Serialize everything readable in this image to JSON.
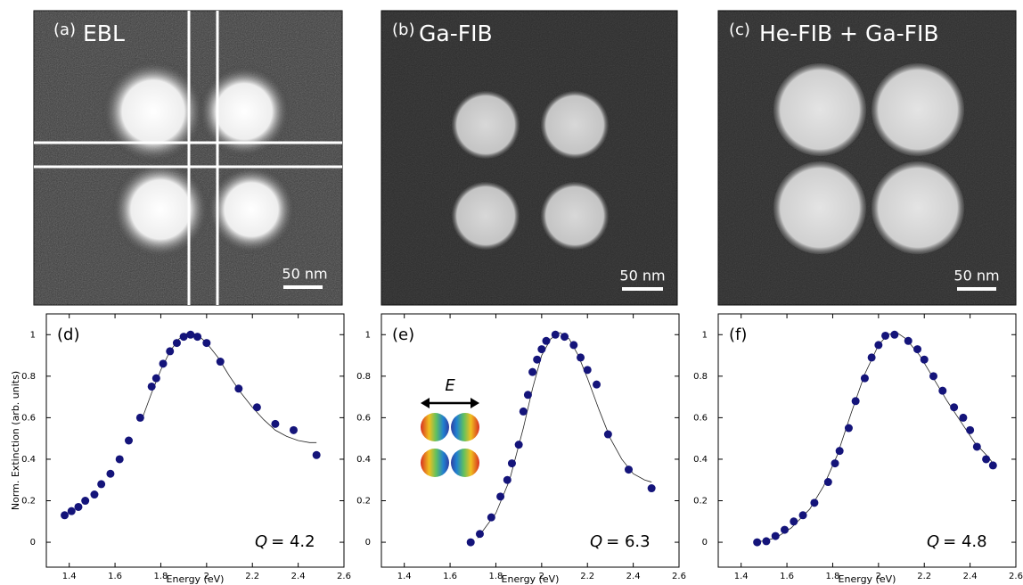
{
  "images": [
    {
      "label": "(a)",
      "title": "EBL",
      "scale_bar": "50 nm"
    },
    {
      "label": "(b)",
      "title": "Ga-FIB",
      "scale_bar": "50 nm"
    },
    {
      "label": "(c)",
      "title": "He-FIB + Ga-FIB",
      "scale_bar": "50 nm"
    }
  ],
  "chart_data": [
    {
      "type": "scatter",
      "panel_label": "(d)",
      "x_label": "Energy (eV)",
      "y_label": "Norm. Extinction (arb. units)",
      "annotation_symbol": "Q",
      "annotation": "= 4.2",
      "xlim": [
        1.3,
        2.6
      ],
      "ylim": [
        -0.12,
        1.1
      ],
      "xticks": [
        1.4,
        1.6,
        1.8,
        2,
        2.2,
        2.4,
        2.6
      ],
      "yticks": [
        0,
        0.2,
        0.4,
        0.6,
        0.8,
        1
      ],
      "series": [
        {
          "color": "#14147a",
          "x": [
            1.38,
            1.41,
            1.44,
            1.47,
            1.51,
            1.54,
            1.58,
            1.62,
            1.66,
            1.71,
            1.76,
            1.78,
            1.81,
            1.84,
            1.87,
            1.9,
            1.93,
            1.96,
            2.0,
            2.06,
            2.14,
            2.22,
            2.3,
            2.38,
            2.48
          ],
          "values": [
            0.13,
            0.15,
            0.17,
            0.2,
            0.23,
            0.28,
            0.33,
            0.4,
            0.49,
            0.6,
            0.75,
            0.79,
            0.86,
            0.92,
            0.96,
            0.99,
            1.0,
            0.99,
            0.96,
            0.87,
            0.74,
            0.65,
            0.57,
            0.54,
            0.42
          ]
        }
      ],
      "fit": {
        "color": "#222222",
        "x": [
          1.72,
          1.76,
          1.8,
          1.84,
          1.88,
          1.92,
          1.96,
          2.0,
          2.05,
          2.1,
          2.15,
          2.2,
          2.25,
          2.3,
          2.35,
          2.4,
          2.45,
          2.48
        ],
        "values": [
          0.6,
          0.72,
          0.83,
          0.92,
          0.98,
          1.01,
          1.0,
          0.96,
          0.89,
          0.8,
          0.72,
          0.65,
          0.59,
          0.54,
          0.51,
          0.49,
          0.48,
          0.48
        ]
      }
    },
    {
      "type": "scatter",
      "panel_label": "(e)",
      "x_label": "Energy (eV)",
      "inset_label": "E",
      "annotation_symbol": "Q",
      "annotation": "= 6.3",
      "xlim": [
        1.3,
        2.6
      ],
      "ylim": [
        -0.12,
        1.1
      ],
      "xticks": [
        1.4,
        1.6,
        1.8,
        2,
        2.2,
        2.4,
        2.6
      ],
      "yticks": [
        0,
        0.2,
        0.4,
        0.6,
        0.8,
        1
      ],
      "series": [
        {
          "color": "#14147a",
          "x": [
            1.69,
            1.73,
            1.78,
            1.82,
            1.85,
            1.87,
            1.9,
            1.92,
            1.94,
            1.96,
            1.98,
            2.0,
            2.02,
            2.06,
            2.1,
            2.14,
            2.17,
            2.2,
            2.24,
            2.29,
            2.38,
            2.48
          ],
          "values": [
            0.0,
            0.04,
            0.12,
            0.22,
            0.3,
            0.38,
            0.47,
            0.63,
            0.71,
            0.82,
            0.88,
            0.93,
            0.97,
            1.0,
            0.99,
            0.95,
            0.89,
            0.83,
            0.76,
            0.52,
            0.35,
            0.26
          ]
        }
      ],
      "fit": {
        "color": "#222222",
        "x": [
          1.72,
          1.8,
          1.86,
          1.92,
          1.96,
          2.0,
          2.04,
          2.08,
          2.12,
          2.16,
          2.2,
          2.25,
          2.3,
          2.35,
          2.4,
          2.45,
          2.48
        ],
        "values": [
          0.02,
          0.14,
          0.3,
          0.55,
          0.74,
          0.9,
          0.98,
          1.01,
          0.98,
          0.9,
          0.79,
          0.64,
          0.5,
          0.4,
          0.33,
          0.3,
          0.29
        ]
      }
    },
    {
      "type": "scatter",
      "panel_label": "(f)",
      "x_label": "Energy (eV)",
      "annotation_symbol": "Q",
      "annotation": "= 4.8",
      "xlim": [
        1.3,
        2.6
      ],
      "ylim": [
        -0.12,
        1.1
      ],
      "xticks": [
        1.4,
        1.6,
        1.8,
        2,
        2.2,
        2.4,
        2.6
      ],
      "yticks": [
        0,
        0.2,
        0.4,
        0.6,
        0.8,
        1
      ],
      "series": [
        {
          "color": "#14147a",
          "x": [
            1.47,
            1.51,
            1.55,
            1.59,
            1.63,
            1.67,
            1.72,
            1.78,
            1.81,
            1.83,
            1.87,
            1.9,
            1.94,
            1.97,
            2.0,
            2.03,
            2.07,
            2.13,
            2.17,
            2.2,
            2.24,
            2.28,
            2.33,
            2.37,
            2.4,
            2.43,
            2.47,
            2.5
          ],
          "values": [
            0.0,
            0.005,
            0.03,
            0.06,
            0.1,
            0.13,
            0.19,
            0.29,
            0.38,
            0.44,
            0.55,
            0.68,
            0.79,
            0.89,
            0.95,
            0.995,
            1.0,
            0.97,
            0.93,
            0.88,
            0.8,
            0.73,
            0.65,
            0.6,
            0.54,
            0.46,
            0.4,
            0.37
          ]
        }
      ],
      "fit": {
        "color": "#222222",
        "x": [
          1.47,
          1.55,
          1.62,
          1.7,
          1.76,
          1.82,
          1.88,
          1.94,
          2.0,
          2.04,
          2.08,
          2.12,
          2.18,
          2.24,
          2.3,
          2.36,
          2.42,
          2.48,
          2.5
        ],
        "values": [
          0.0,
          0.02,
          0.07,
          0.16,
          0.27,
          0.42,
          0.62,
          0.81,
          0.95,
          1.0,
          1.01,
          0.98,
          0.9,
          0.79,
          0.68,
          0.58,
          0.48,
          0.41,
          0.38
        ]
      }
    }
  ]
}
